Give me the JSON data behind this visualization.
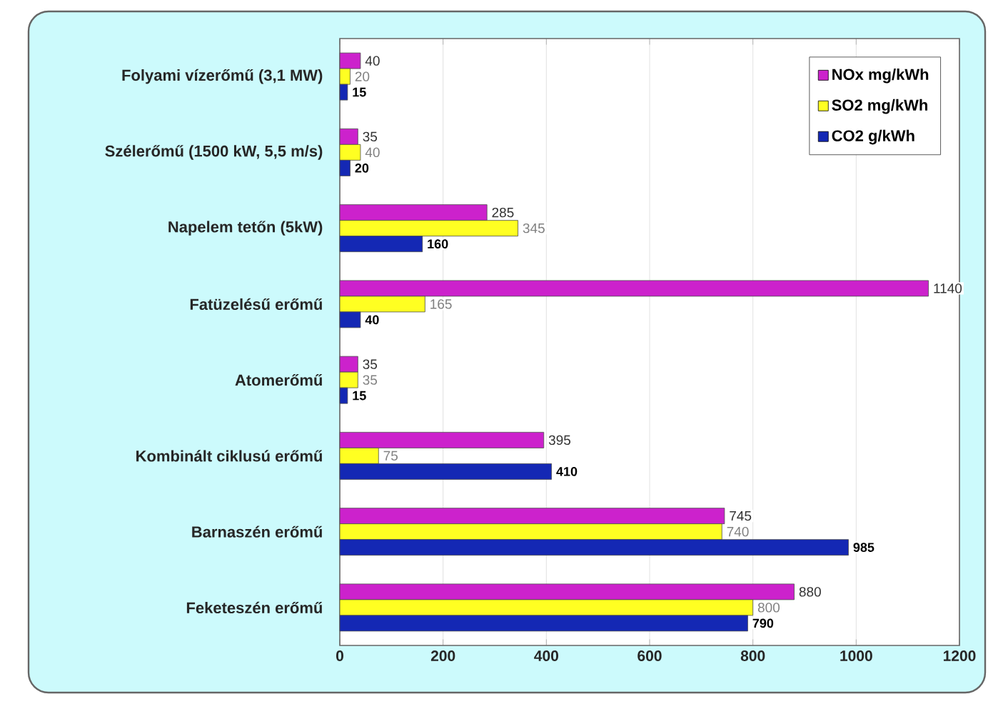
{
  "chart_data": {
    "type": "bar",
    "orientation": "horizontal",
    "categories": [
      "Folyami vízerőmű (3,1 MW)",
      "Szélerőmű (1500 kW, 5,5 m/s)",
      "Napelem tetőn (5kW)",
      "Fatüzelésű erőmű",
      "Atomerőmű",
      "Kombinált ciklusú  erőmű",
      "Barnaszén erőmű",
      "Feketeszén erőmű"
    ],
    "series": [
      {
        "name": "NOx mg/kWh",
        "color": "#cc22cc",
        "values": [
          40,
          35,
          285,
          1140,
          35,
          395,
          745,
          880
        ]
      },
      {
        "name": "SO2 mg/kWh",
        "color": "#ffff22",
        "values": [
          20,
          40,
          345,
          165,
          35,
          75,
          740,
          800
        ]
      },
      {
        "name": "CO2 g/kWh",
        "color": "#1428b4",
        "values": [
          15,
          20,
          160,
          40,
          15,
          410,
          985,
          790
        ]
      }
    ],
    "xlim": [
      0,
      1200
    ],
    "xticks": [
      0,
      200,
      400,
      600,
      800,
      1000,
      1200
    ],
    "grid": "x",
    "legend": "top right",
    "data_labels": true
  }
}
